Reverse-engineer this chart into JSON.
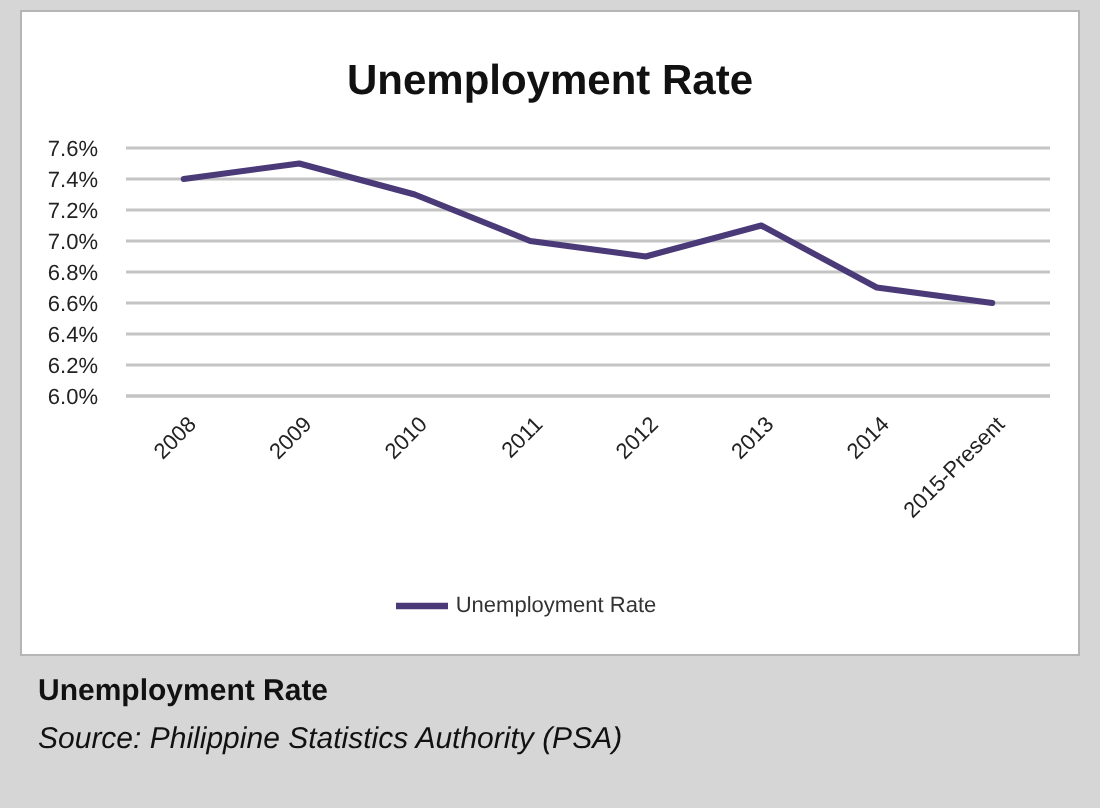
{
  "chart_data": {
    "type": "line",
    "title": "Unemployment Rate",
    "categories": [
      "2008",
      "2009",
      "2010",
      "2011",
      "2012",
      "2013",
      "2014",
      "2015-Present"
    ],
    "series": [
      {
        "name": "Unemployment Rate",
        "color": "#4b3a78",
        "values": [
          7.4,
          7.5,
          7.3,
          7.0,
          6.9,
          7.1,
          6.7,
          6.6
        ]
      }
    ],
    "ylim": [
      6.0,
      7.6
    ],
    "yticks": [
      {
        "value": 6.0,
        "label": "6.0%"
      },
      {
        "value": 6.2,
        "label": "6.2%"
      },
      {
        "value": 6.4,
        "label": "6.4%"
      },
      {
        "value": 6.6,
        "label": "6.6%"
      },
      {
        "value": 6.8,
        "label": "6.8%"
      },
      {
        "value": 7.0,
        "label": "7.0%"
      },
      {
        "value": 7.2,
        "label": "7.2%"
      },
      {
        "value": 7.4,
        "label": "7.4%"
      },
      {
        "value": 7.6,
        "label": "7.6%"
      }
    ],
    "grid": "y",
    "legend": "bottom",
    "marker": "none",
    "line_style": "solid",
    "annotations": [
      "Unemployment Rate",
      "Source: Philippine Statistics Authority (PSA)"
    ]
  }
}
